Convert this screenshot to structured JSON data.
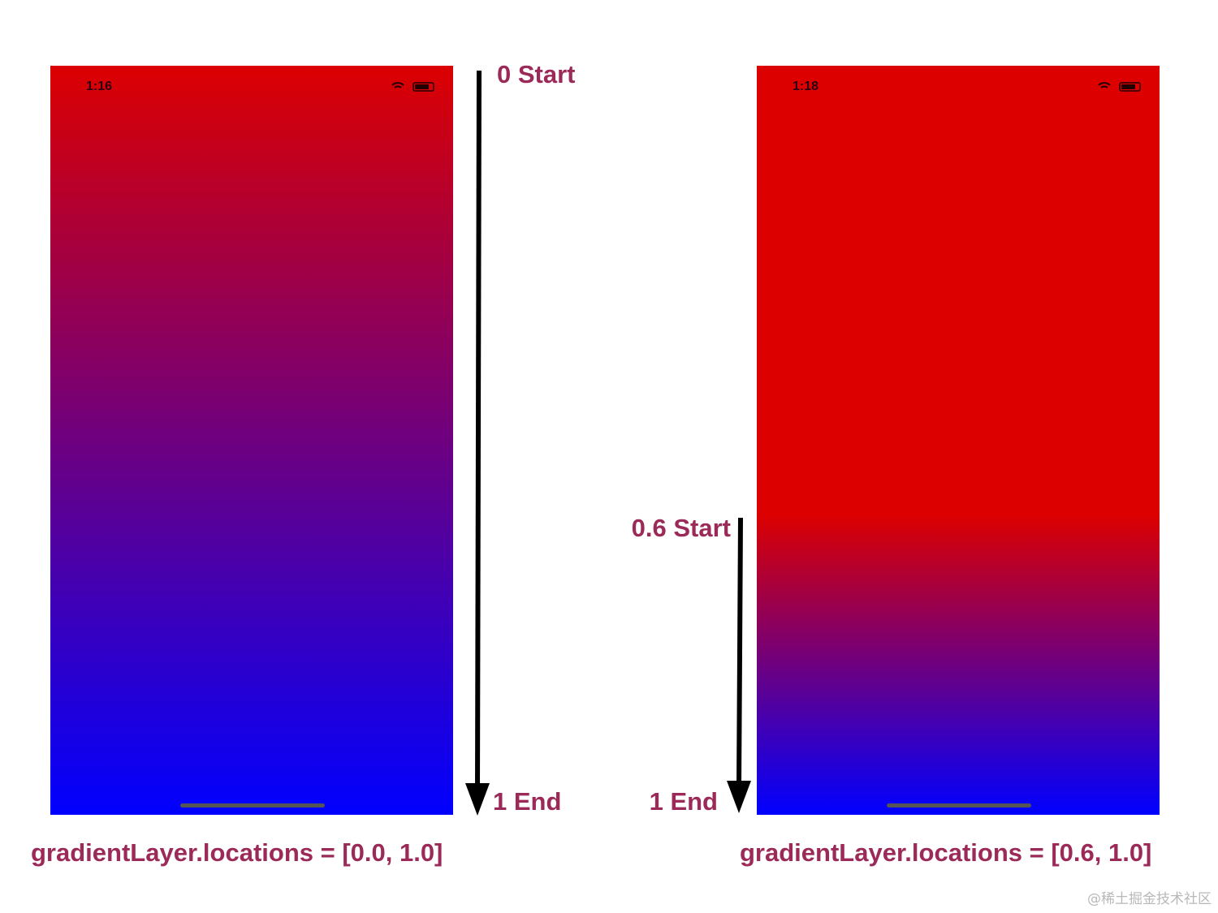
{
  "left_panel": {
    "time": "1:16",
    "start_label": "0 Start",
    "end_label": "1 End",
    "caption": "gradientLayer.locations = [0.0, 1.0]"
  },
  "right_panel": {
    "time": "1:18",
    "start_label": "0.6 Start",
    "end_label": "1 End",
    "caption": "gradientLayer.locations = [0.6, 1.0]"
  },
  "watermark": "@稀土掘金技术社区"
}
